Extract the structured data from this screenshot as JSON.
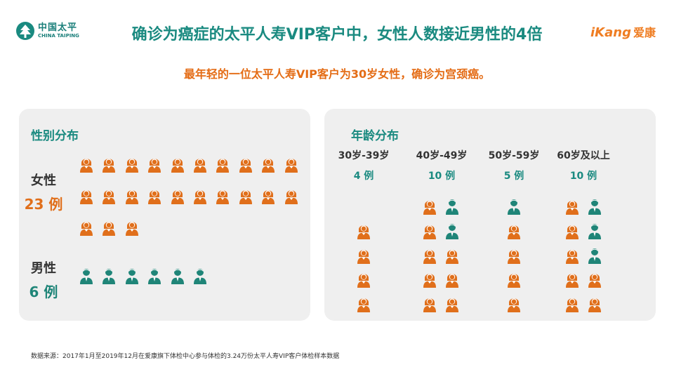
{
  "header": {
    "logo_left_cn": "中国太平",
    "logo_left_en": "CHINA TAIPING",
    "title": "确诊为癌症的太平人寿VIP客户中，女性人数接近男性的4倍",
    "logo_right_brand": "iKang",
    "logo_right_cn": "爱康",
    "subtitle": "最年轻的一位太平人寿VIP客户为30岁女性，确诊为宫颈癌。"
  },
  "colors": {
    "female": "#e06f1b",
    "male": "#1f8578",
    "accent": "#1a8a80",
    "panel": "#efefef"
  },
  "chart_data": [
    {
      "type": "pictograph",
      "title": "性别分布",
      "series": [
        {
          "name": "女性",
          "count": 23,
          "count_label": "23 例",
          "icon": "female-person-icon"
        },
        {
          "name": "男性",
          "count": 6,
          "count_label": "6 例",
          "icon": "male-person-icon"
        }
      ]
    },
    {
      "type": "pictograph",
      "title": "年龄分布",
      "categories": [
        "30岁-39岁",
        "40岁-49岁",
        "50岁-59岁",
        "60岁及以上"
      ],
      "count_labels": [
        "4 例",
        "10 例",
        "5 例",
        "10 例"
      ],
      "series": [
        {
          "name": "female",
          "values": [
            4,
            8,
            4,
            7
          ]
        },
        {
          "name": "male",
          "values": [
            0,
            2,
            1,
            3
          ]
        }
      ]
    }
  ],
  "footer": {
    "source": "数据来源：2017年1月至2019年12月在爱康旗下体检中心参与体检的3.24万份太平人寿VIP客户体检样本数据"
  }
}
